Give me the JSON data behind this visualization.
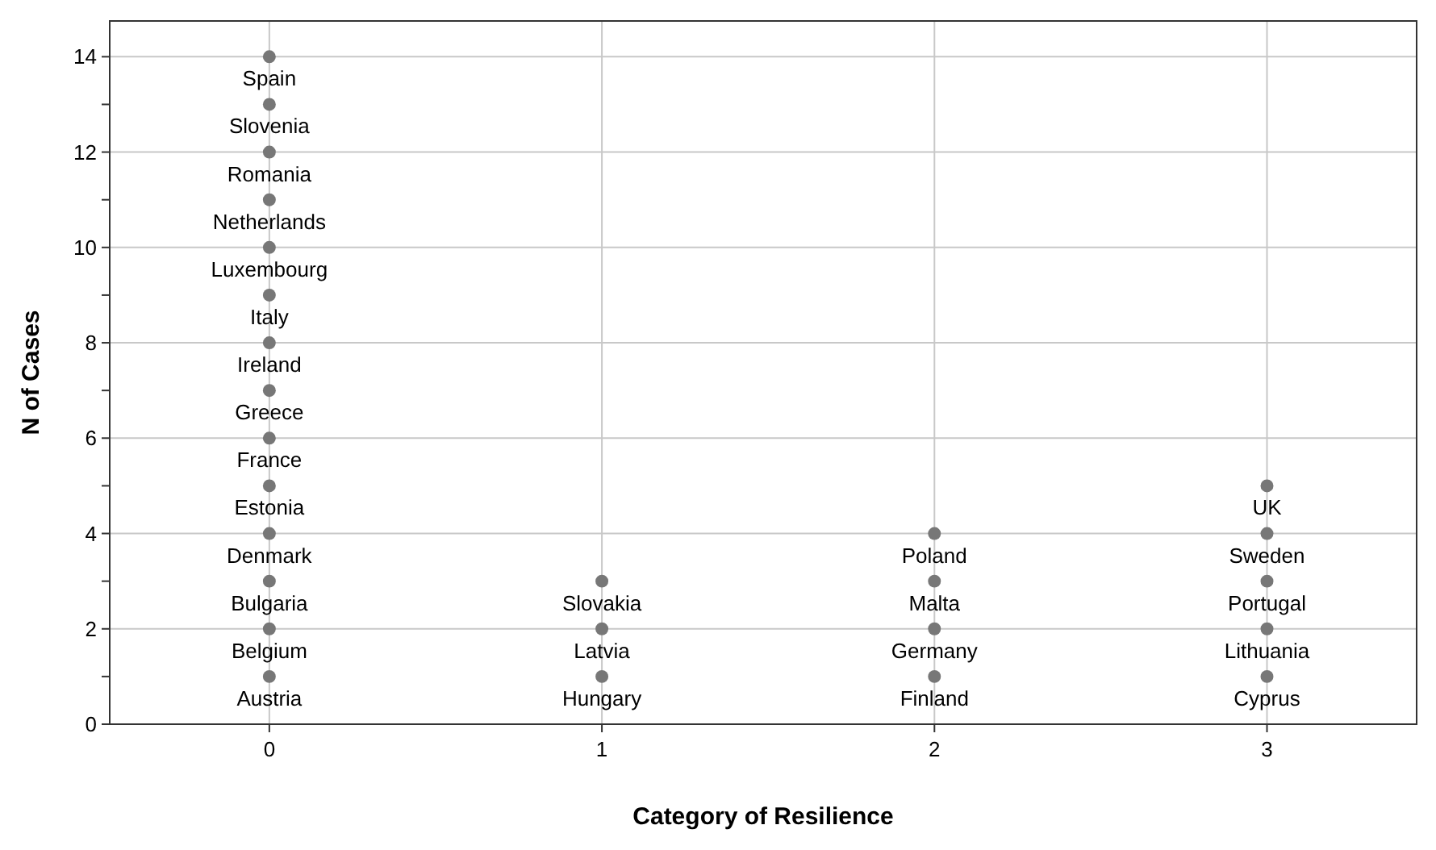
{
  "chart_data": {
    "type": "scatter",
    "xlabel": "Category of Resilience",
    "ylabel": "N of Cases",
    "marker": "circle",
    "grid": true,
    "xlim": [
      -0.48,
      3.45
    ],
    "xticks": [
      0,
      1,
      2,
      3
    ],
    "ylim": [
      0,
      14.75
    ],
    "yticks": [
      0,
      {
        "value": 1,
        "label": null
      },
      2,
      {
        "value": 3,
        "label": null
      },
      4,
      {
        "value": 5,
        "label": null
      },
      6,
      {
        "value": 7,
        "label": null
      },
      8,
      {
        "value": 9,
        "label": null
      },
      10,
      {
        "value": 11,
        "label": null
      },
      12,
      {
        "value": 13,
        "label": null
      },
      14
    ],
    "series": [
      {
        "color": "#777777",
        "x": [
          0,
          0,
          0,
          0,
          0,
          0,
          0,
          0,
          0,
          0,
          0,
          0,
          0,
          0,
          1,
          1,
          1,
          2,
          2,
          2,
          2,
          3,
          3,
          3,
          3,
          3
        ],
        "values": [
          1,
          2,
          3,
          4,
          5,
          6,
          7,
          8,
          9,
          10,
          11,
          12,
          13,
          14,
          1,
          2,
          3,
          1,
          2,
          3,
          4,
          1,
          2,
          3,
          4,
          5
        ]
      }
    ],
    "annotations": [
      {
        "text": "Austria",
        "x": 0,
        "y": 1
      },
      {
        "text": "Belgium",
        "x": 0,
        "y": 2
      },
      {
        "text": "Bulgaria",
        "x": 0,
        "y": 3
      },
      {
        "text": "Denmark",
        "x": 0,
        "y": 4
      },
      {
        "text": "Estonia",
        "x": 0,
        "y": 5
      },
      {
        "text": "France",
        "x": 0,
        "y": 6
      },
      {
        "text": "Greece",
        "x": 0,
        "y": 7
      },
      {
        "text": "Ireland",
        "x": 0,
        "y": 8
      },
      {
        "text": "Italy",
        "x": 0,
        "y": 9
      },
      {
        "text": "Luxembourg",
        "x": 0,
        "y": 10
      },
      {
        "text": "Netherlands",
        "x": 0,
        "y": 11
      },
      {
        "text": "Romania",
        "x": 0,
        "y": 12
      },
      {
        "text": "Slovenia",
        "x": 0,
        "y": 13
      },
      {
        "text": "Spain",
        "x": 0,
        "y": 14
      },
      {
        "text": "Hungary",
        "x": 1,
        "y": 1
      },
      {
        "text": "Latvia",
        "x": 1,
        "y": 2
      },
      {
        "text": "Slovakia",
        "x": 1,
        "y": 3
      },
      {
        "text": "Finland",
        "x": 2,
        "y": 1
      },
      {
        "text": "Germany",
        "x": 2,
        "y": 2
      },
      {
        "text": "Malta",
        "x": 2,
        "y": 3
      },
      {
        "text": "Poland",
        "x": 2,
        "y": 4
      },
      {
        "text": "Cyprus",
        "x": 3,
        "y": 1
      },
      {
        "text": "Lithuania",
        "x": 3,
        "y": 2
      },
      {
        "text": "Portugal",
        "x": 3,
        "y": 3
      },
      {
        "text": "Sweden",
        "x": 3,
        "y": 4
      },
      {
        "text": "UK",
        "x": 3,
        "y": 5
      }
    ]
  }
}
